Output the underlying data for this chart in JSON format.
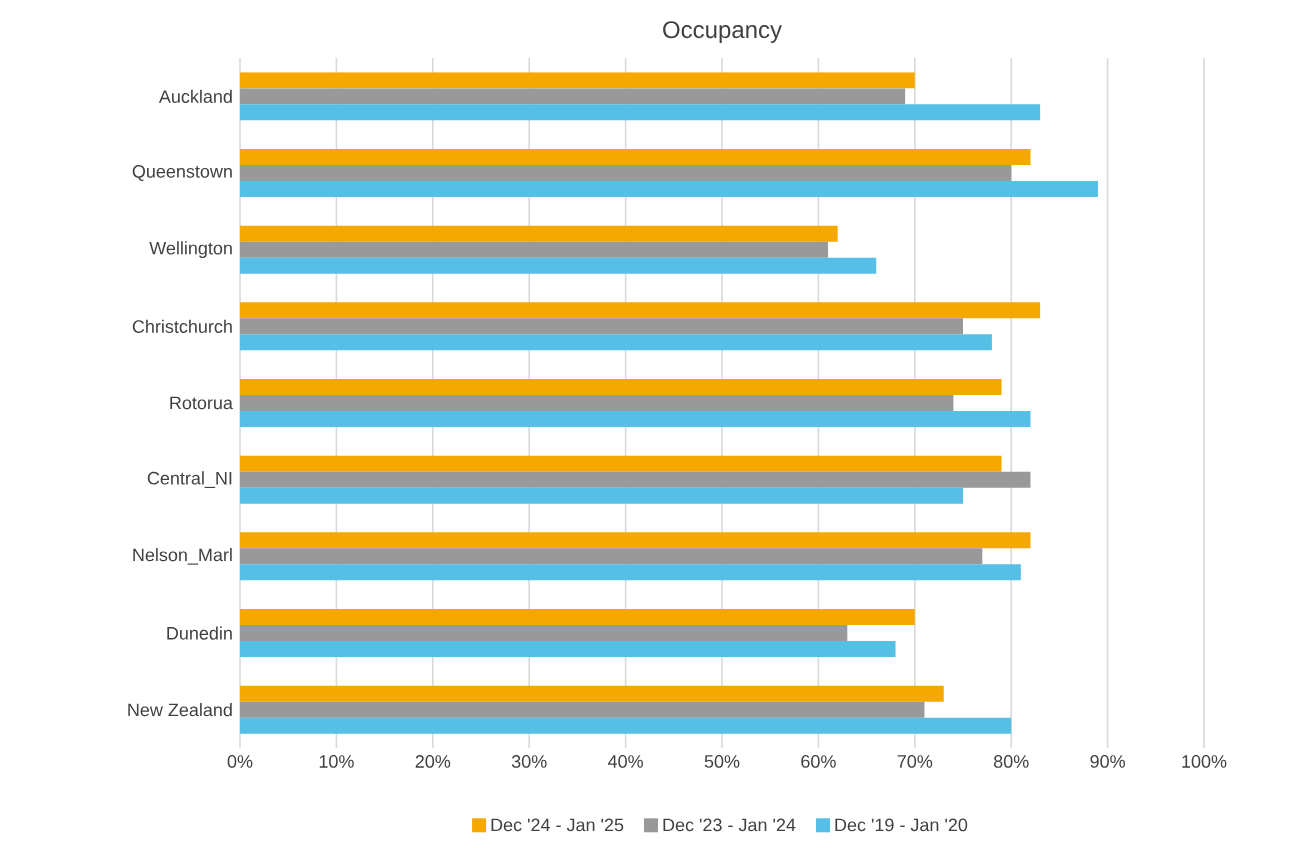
{
  "chart_data": {
    "type": "bar",
    "orientation": "horizontal",
    "title": "Occupancy",
    "categories": [
      "Auckland",
      "Queenstown",
      "Wellington",
      "Christchurch",
      "Rotorua",
      "Central_NI",
      "Nelson_Marl",
      "Dunedin",
      "New Zealand"
    ],
    "series": [
      {
        "name": "Dec '24 - Jan '25",
        "color": "#f5a800",
        "values": [
          70,
          82,
          62,
          83,
          79,
          79,
          82,
          70,
          73
        ]
      },
      {
        "name": "Dec '23 - Jan '24",
        "color": "#999999",
        "values": [
          69,
          80,
          61,
          75,
          74,
          82,
          77,
          63,
          71
        ]
      },
      {
        "name": "Dec '19 - Jan '20",
        "color": "#55bfe6",
        "values": [
          83,
          89,
          66,
          78,
          82,
          75,
          81,
          68,
          80
        ]
      }
    ],
    "xlim": [
      0,
      100
    ],
    "xticks": [
      {
        "value": 0,
        "label": "0%"
      },
      {
        "value": 10,
        "label": "10%"
      },
      {
        "value": 20,
        "label": "20%"
      },
      {
        "value": 30,
        "label": "30%"
      },
      {
        "value": 40,
        "label": "40%"
      },
      {
        "value": 50,
        "label": "50%"
      },
      {
        "value": 60,
        "label": "60%"
      },
      {
        "value": 70,
        "label": "70%"
      },
      {
        "value": 80,
        "label": "80%"
      },
      {
        "value": 90,
        "label": "90%"
      },
      {
        "value": 100,
        "label": "100%"
      }
    ],
    "grid": "x",
    "legend": "bottom"
  }
}
